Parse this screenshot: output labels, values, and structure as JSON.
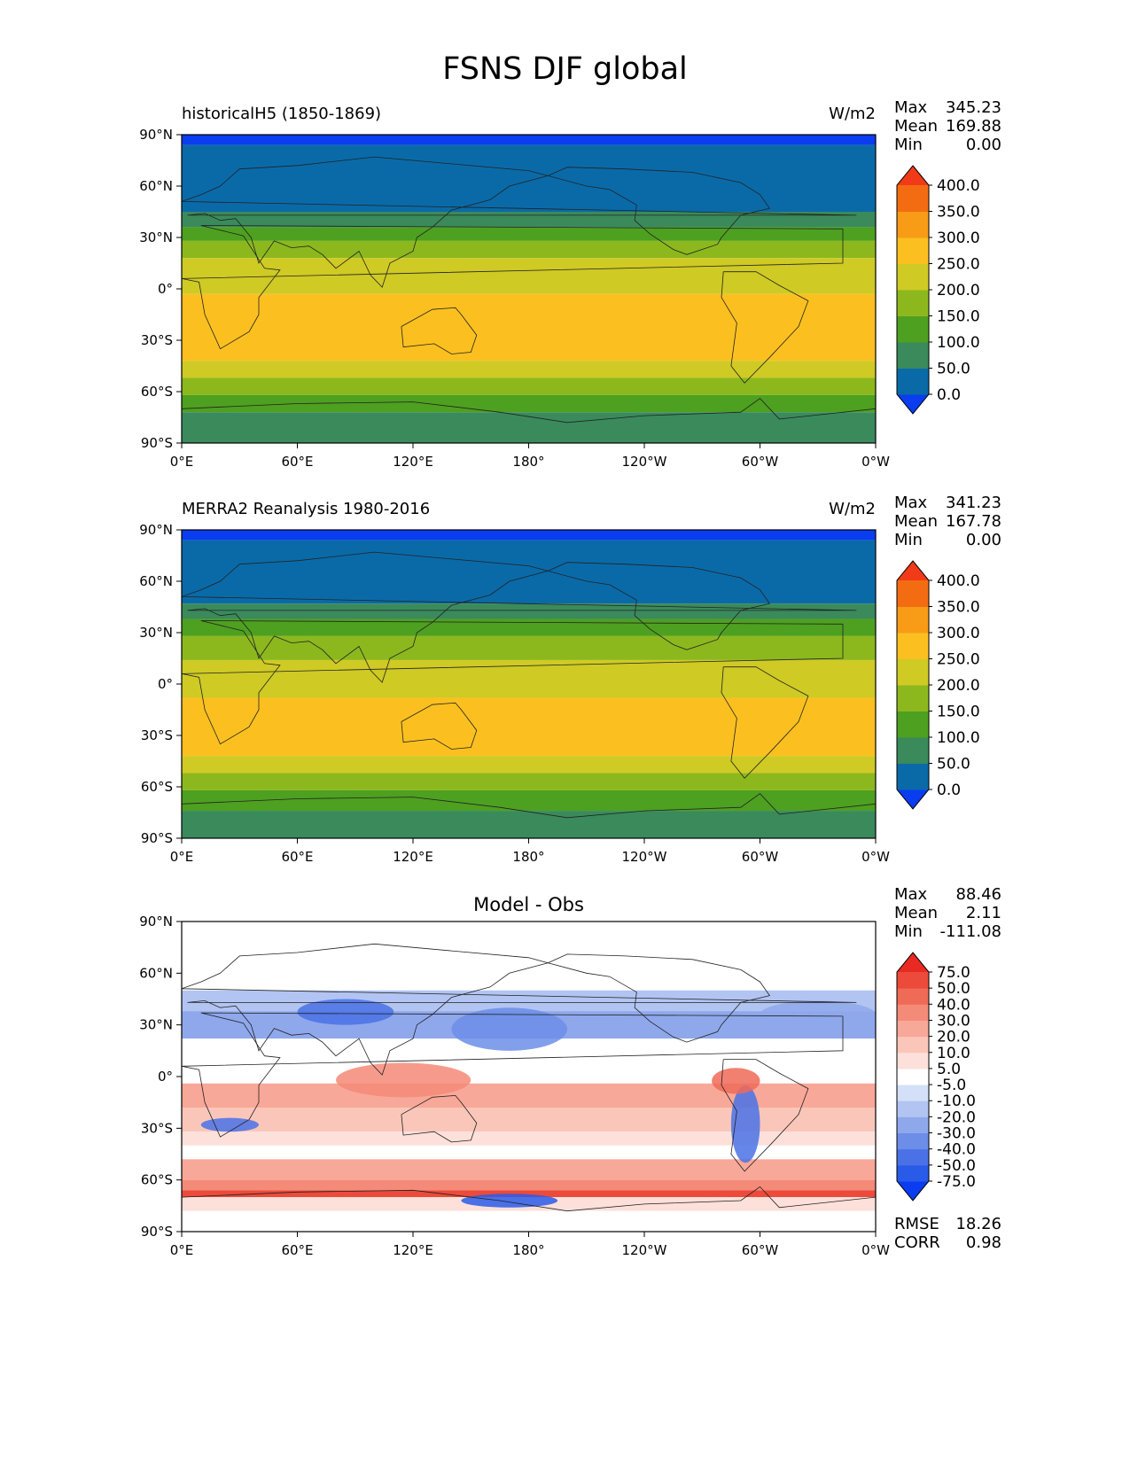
{
  "figure_title": "FSNS DJF global",
  "x_ticks": [
    "0°E",
    "60°E",
    "120°E",
    "180°",
    "120°W",
    "60°W",
    "0°W"
  ],
  "y_ticks": [
    "90°N",
    "60°N",
    "30°N",
    "0°",
    "30°S",
    "60°S",
    "90°S"
  ],
  "chart_data": [
    {
      "type": "heatmap",
      "panel": "test",
      "title": "historicalH5 (1850-1869)",
      "units": "W/m2",
      "stats": {
        "Max": "345.23",
        "Mean": "169.88",
        "Min": "0.00"
      },
      "xlim": [
        0,
        360
      ],
      "ylim": [
        -90,
        90
      ],
      "colorbar": {
        "levels": [
          "0.0",
          "50.0",
          "100.0",
          "150.0",
          "200.0",
          "250.0",
          "300.0",
          "350.0",
          "400.0"
        ],
        "colors": [
          "#0a3cf0",
          "#0a6aa8",
          "#3a8a5c",
          "#4ea020",
          "#8cb81e",
          "#cfca24",
          "#fbc020",
          "#f89b16",
          "#f46c12",
          "#f13a18"
        ]
      },
      "zonal_bands": [
        {
          "lat": [
            84,
            90
          ],
          "level_index": 0
        },
        {
          "lat": [
            45,
            84
          ],
          "level_index": 1
        },
        {
          "lat": [
            36,
            45
          ],
          "level_index": 2
        },
        {
          "lat": [
            28,
            36
          ],
          "level_index": 3
        },
        {
          "lat": [
            18,
            28
          ],
          "level_index": 4
        },
        {
          "lat": [
            -3,
            18
          ],
          "level_index": 5
        },
        {
          "lat": [
            -42,
            -3
          ],
          "level_index": 6
        },
        {
          "lat": [
            -52,
            -42
          ],
          "level_index": 5
        },
        {
          "lat": [
            -62,
            -52
          ],
          "level_index": 4
        },
        {
          "lat": [
            -72,
            -62
          ],
          "level_index": 3
        },
        {
          "lat": [
            -90,
            -72
          ],
          "level_index": 2
        }
      ]
    },
    {
      "type": "heatmap",
      "panel": "reference",
      "title": "MERRA2 Reanalysis 1980-2016",
      "units": "W/m2",
      "stats": {
        "Max": "341.23",
        "Mean": "167.78",
        "Min": "0.00"
      },
      "xlim": [
        0,
        360
      ],
      "ylim": [
        -90,
        90
      ],
      "colorbar": {
        "levels": [
          "0.0",
          "50.0",
          "100.0",
          "150.0",
          "200.0",
          "250.0",
          "300.0",
          "350.0",
          "400.0"
        ],
        "colors": [
          "#0a3cf0",
          "#0a6aa8",
          "#3a8a5c",
          "#4ea020",
          "#8cb81e",
          "#cfca24",
          "#fbc020",
          "#f89b16",
          "#f46c12",
          "#f13a18"
        ]
      },
      "zonal_bands": [
        {
          "lat": [
            84,
            90
          ],
          "level_index": 0
        },
        {
          "lat": [
            47,
            84
          ],
          "level_index": 1
        },
        {
          "lat": [
            38,
            47
          ],
          "level_index": 2
        },
        {
          "lat": [
            28,
            38
          ],
          "level_index": 3
        },
        {
          "lat": [
            14,
            28
          ],
          "level_index": 4
        },
        {
          "lat": [
            -8,
            14
          ],
          "level_index": 5
        },
        {
          "lat": [
            -42,
            -8
          ],
          "level_index": 6
        },
        {
          "lat": [
            -52,
            -42
          ],
          "level_index": 5
        },
        {
          "lat": [
            -62,
            -52
          ],
          "level_index": 4
        },
        {
          "lat": [
            -74,
            -62
          ],
          "level_index": 3
        },
        {
          "lat": [
            -90,
            -74
          ],
          "level_index": 2
        }
      ]
    },
    {
      "type": "heatmap",
      "panel": "difference",
      "title": "Model - Obs",
      "stats": {
        "Max": "88.46",
        "Mean": "2.11",
        "Min": "-111.08"
      },
      "metrics": {
        "RMSE": "18.26",
        "CORR": "0.98"
      },
      "xlim": [
        0,
        360
      ],
      "ylim": [
        -90,
        90
      ],
      "colorbar": {
        "levels": [
          "-75.0",
          "-50.0",
          "-40.0",
          "-30.0",
          "-20.0",
          "-10.0",
          "-5.0",
          "5.0",
          "10.0",
          "20.0",
          "30.0",
          "40.0",
          "50.0",
          "75.0"
        ],
        "colors": [
          "#0a3cf0",
          "#2a5ae8",
          "#4a72e6",
          "#6c8ee8",
          "#8fa8ec",
          "#b2c4f2",
          "#d4dff8",
          "#ffffff",
          "#fde0da",
          "#fbc6ba",
          "#f8a898",
          "#f48a78",
          "#f06a58",
          "#ec4a3a",
          "#e82a22"
        ]
      },
      "zonal_bands": [
        {
          "lat": [
            78,
            90
          ],
          "level_index": 7
        },
        {
          "lat": [
            50,
            78
          ],
          "level_index": 7
        },
        {
          "lat": [
            38,
            50
          ],
          "level_index": 5
        },
        {
          "lat": [
            22,
            38
          ],
          "level_index": 4
        },
        {
          "lat": [
            8,
            22
          ],
          "level_index": 7
        },
        {
          "lat": [
            -4,
            8
          ],
          "level_index": 7
        },
        {
          "lat": [
            -18,
            -4
          ],
          "level_index": 10
        },
        {
          "lat": [
            -32,
            -18
          ],
          "level_index": 9
        },
        {
          "lat": [
            -40,
            -32
          ],
          "level_index": 8
        },
        {
          "lat": [
            -48,
            -40
          ],
          "level_index": 7
        },
        {
          "lat": [
            -60,
            -48
          ],
          "level_index": 10
        },
        {
          "lat": [
            -66,
            -60
          ],
          "level_index": 11
        },
        {
          "lat": [
            -70,
            -66
          ],
          "level_index": 13
        },
        {
          "lat": [
            -78,
            -70
          ],
          "level_index": 8
        },
        {
          "lat": [
            -90,
            -78
          ],
          "level_index": 7
        }
      ],
      "anomalies": [
        {
          "lon": [
            140,
            200
          ],
          "lat": [
            15,
            40
          ],
          "level_index": 3
        },
        {
          "lon": [
            80,
            150
          ],
          "lat": [
            -12,
            8
          ],
          "level_index": 11
        },
        {
          "lon": [
            285,
            300
          ],
          "lat": [
            -50,
            -5
          ],
          "level_index": 2
        },
        {
          "lon": [
            145,
            195
          ],
          "lat": [
            -76,
            -68
          ],
          "level_index": 1
        },
        {
          "lon": [
            10,
            40
          ],
          "lat": [
            -32,
            -24
          ],
          "level_index": 2
        },
        {
          "lon": [
            275,
            300
          ],
          "lat": [
            -10,
            5
          ],
          "level_index": 12
        },
        {
          "lon": [
            60,
            110
          ],
          "lat": [
            30,
            45
          ],
          "level_index": 2
        },
        {
          "lon": [
            300,
            360
          ],
          "lat": [
            28,
            44
          ],
          "level_index": 4
        }
      ]
    }
  ]
}
